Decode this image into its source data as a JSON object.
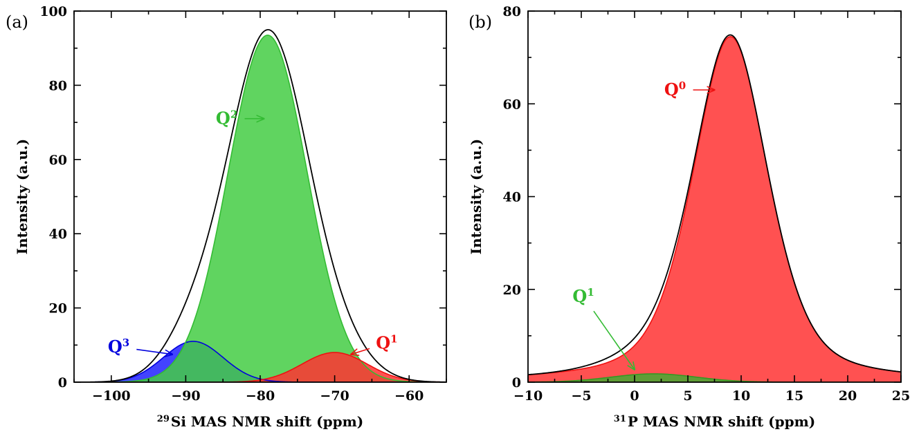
{
  "chart_data": [
    {
      "type": "area",
      "panel_label": "(a)",
      "xlabel_sup": "29",
      "xlabel": "Si MAS NMR shift (ppm)",
      "ylabel": "Intensity (a.u.)",
      "xlim": [
        -105,
        -55
      ],
      "ylim": [
        0,
        100
      ],
      "xticks": [
        -100,
        -90,
        -80,
        -70,
        -60
      ],
      "yticks": [
        0,
        20,
        40,
        60,
        80,
        100
      ],
      "series": [
        {
          "name": "Q",
          "sup": "3",
          "type": "gaussian",
          "center": -89,
          "amplitude": 11,
          "width": 4.0,
          "fill": "#2222ff",
          "stroke": "#0000dd"
        },
        {
          "name": "Q",
          "sup": "2",
          "type": "gaussian",
          "center": -79,
          "amplitude": 93.5,
          "width": 5.3,
          "fill": "#44cc44",
          "stroke": "#33bb33"
        },
        {
          "name": "Q",
          "sup": "1",
          "type": "gaussian",
          "center": -70,
          "amplitude": 8,
          "width": 4.4,
          "fill": "#ff3333",
          "stroke": "#ee1111"
        }
      ],
      "sum": {
        "stroke": "#000000",
        "peak": 94.5
      },
      "annotations": [
        {
          "label": "Q",
          "sup": "2",
          "color": "#33bb33",
          "text_xy": [
            -84.5,
            71
          ],
          "arrow_to": [
            -79.5,
            71
          ]
        },
        {
          "label": "Q",
          "sup": "3",
          "color": "#0000dd",
          "text_xy": [
            -99,
            9.5
          ],
          "arrow_to": [
            -91.8,
            7.5
          ]
        },
        {
          "label": "Q",
          "sup": "1",
          "color": "#ee1111",
          "text_xy": [
            -63,
            10.5
          ],
          "arrow_to": [
            -67.8,
            7.5
          ]
        }
      ]
    },
    {
      "type": "area",
      "panel_label": "(b)",
      "xlabel_sup": "31",
      "xlabel": "P MAS NMR shift (ppm)",
      "ylabel": "Intensity (a.u.)",
      "xlim": [
        -10,
        25
      ],
      "ylim": [
        0,
        80
      ],
      "xticks": [
        -10,
        -5,
        0,
        5,
        10,
        15,
        20,
        25
      ],
      "yticks": [
        0,
        20,
        40,
        60,
        80
      ],
      "series": [
        {
          "name": "Q",
          "sup": "0",
          "type": "pseudovoigt",
          "center": 9,
          "amplitude": 74.5,
          "width": 3.6,
          "fill": "#ff3333",
          "stroke": "#ee1111"
        },
        {
          "name": "Q",
          "sup": "1",
          "type": "gaussian",
          "center": 1.8,
          "amplitude": 1.8,
          "width": 4.0,
          "fill": "#44aa33",
          "stroke": "#339922"
        }
      ],
      "sum": {
        "stroke": "#000000",
        "peak": 74.5
      },
      "annotations": [
        {
          "label": "Q",
          "sup": "0",
          "color": "#ee1111",
          "text_xy": [
            3.8,
            63
          ],
          "arrow_to": [
            7.5,
            63
          ]
        },
        {
          "label": "Q",
          "sup": "1",
          "color": "#33bb33",
          "text_xy": [
            -4.8,
            18.5
          ],
          "arrow_to": [
            0.0,
            2.7
          ]
        }
      ]
    }
  ]
}
